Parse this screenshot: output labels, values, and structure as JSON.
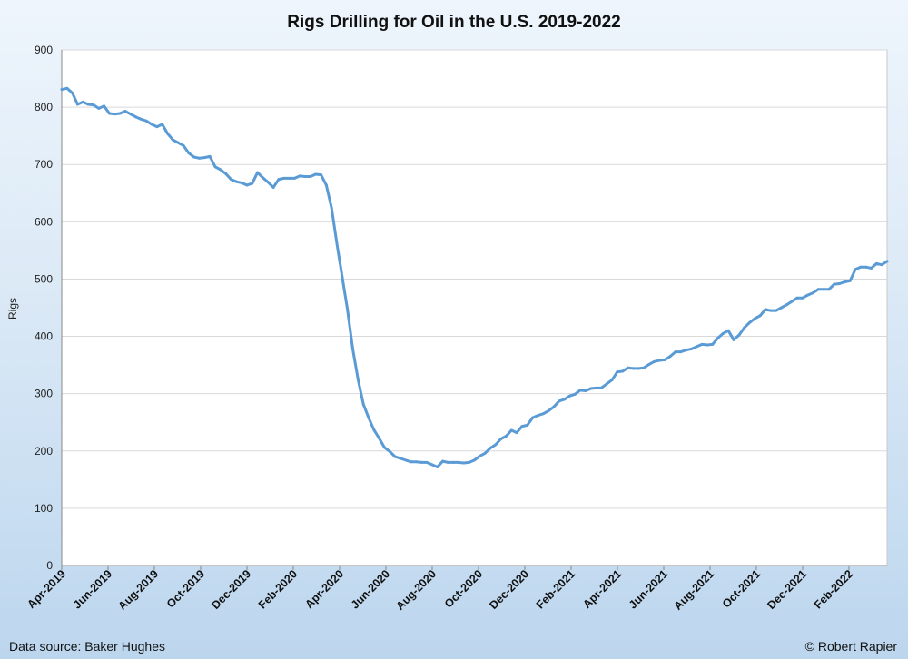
{
  "chart_data": {
    "type": "line",
    "title": "Rigs Drilling for Oil in the U.S. 2019-2022",
    "xlabel": "",
    "ylabel": "Rigs",
    "ylim": [
      0,
      900
    ],
    "yticks": [
      0,
      100,
      200,
      300,
      400,
      500,
      600,
      700,
      800,
      900
    ],
    "x_tick_labels": [
      "Apr-2019",
      "Jun-2019",
      "Aug-2019",
      "Oct-2019",
      "Dec-2019",
      "Feb-2020",
      "Apr-2020",
      "Jun-2020",
      "Aug-2020",
      "Oct-2020",
      "Dec-2020",
      "Feb-2021",
      "Apr-2021",
      "Jun-2021",
      "Aug-2021",
      "Oct-2021",
      "Dec-2021",
      "Feb-2022"
    ],
    "grid": true,
    "legend": "none",
    "series_color": "#5b9bd5",
    "series": [
      {
        "values": [
          831,
          833,
          825,
          805,
          809,
          805,
          804,
          798,
          802,
          789,
          788,
          789,
          793,
          788,
          783,
          779,
          776,
          770,
          766,
          770,
          754,
          743,
          738,
          733,
          720,
          713,
          711,
          712,
          714,
          696,
          691,
          684,
          674,
          670,
          668,
          664,
          667,
          686,
          677,
          669,
          660,
          674,
          676,
          676,
          676,
          680,
          679,
          679,
          683,
          682,
          664,
          624,
          562,
          504,
          447,
          378,
          325,
          282,
          258,
          237,
          222,
          206,
          199,
          190,
          187,
          184,
          181,
          181,
          180,
          180,
          176,
          172,
          182,
          180,
          180,
          180,
          179,
          180,
          184,
          191,
          196,
          205,
          211,
          221,
          226,
          236,
          232,
          243,
          245,
          258,
          262,
          265,
          270,
          277,
          287,
          290,
          296,
          299,
          306,
          305,
          309,
          310,
          310,
          317,
          324,
          338,
          339,
          345,
          344,
          344,
          345,
          351,
          356,
          358,
          359,
          365,
          373,
          373,
          376,
          378,
          382,
          386,
          385,
          386,
          397,
          405,
          410,
          394,
          402,
          415,
          424,
          431,
          436,
          447,
          445,
          445,
          450,
          455,
          461,
          467,
          467,
          472,
          476,
          482,
          482,
          482,
          491,
          492,
          495,
          497,
          517,
          521,
          521,
          519,
          527,
          525,
          531
        ]
      }
    ]
  },
  "footer": {
    "source": "Data source: Baker Hughes",
    "credit": "© Robert Rapier"
  }
}
